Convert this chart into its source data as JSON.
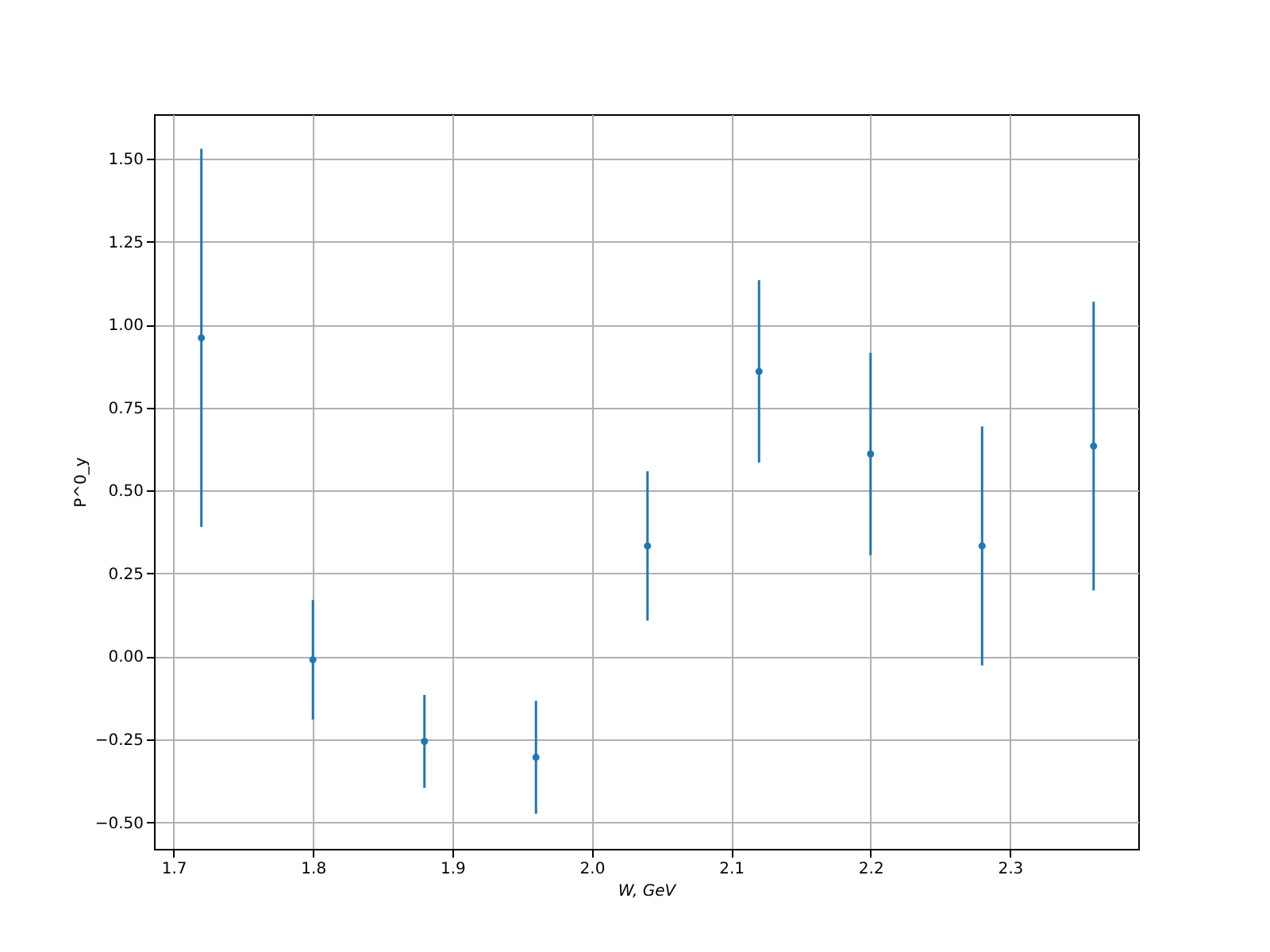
{
  "chart_data": {
    "type": "scatter",
    "xlabel": "W, GeV",
    "ylabel": "P^0_y",
    "x": [
      1.72,
      1.8,
      1.88,
      1.96,
      2.04,
      2.12,
      2.2,
      2.28,
      2.36
    ],
    "series": [
      {
        "color": "#1f77b4",
        "values": [
          0.96,
          -0.01,
          -0.256,
          -0.304,
          0.333,
          0.859,
          0.61,
          0.333,
          0.634
        ],
        "errors": [
          0.57,
          0.18,
          0.14,
          0.17,
          0.225,
          0.275,
          0.305,
          0.36,
          0.435
        ]
      }
    ],
    "xlim": [
      1.686,
      2.392
    ],
    "ylim": [
      -0.58,
      1.634
    ],
    "xticks": [
      1.7,
      1.8,
      1.9,
      {
        "value": 2,
        "label": "2.0"
      },
      2.1,
      2.2,
      2.3
    ],
    "yticks": [
      {
        "value": -0.5,
        "label": "−0.50"
      },
      -0.25,
      {
        "value": 0,
        "label": "0.00"
      },
      0.25,
      {
        "value": 0.5,
        "label": "0.50"
      },
      0.75,
      {
        "value": 1,
        "label": "1.00"
      },
      1.25,
      {
        "value": 1.5,
        "label": "1.50"
      }
    ],
    "grid": true,
    "marker": "circle"
  }
}
